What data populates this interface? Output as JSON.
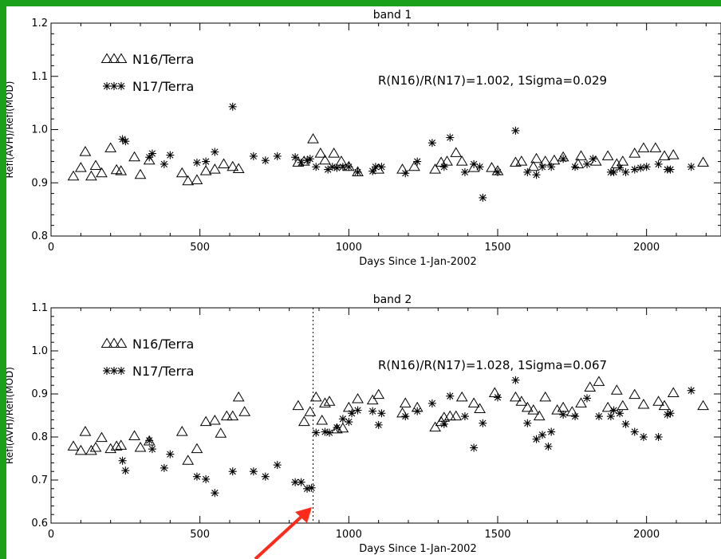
{
  "colors": {
    "background_frame": "#1aa01a",
    "plot_bg": "#ffffff",
    "ink": "#000000",
    "arrow": "#ff2a1a"
  },
  "chart_data": [
    {
      "type": "scatter",
      "title": "band 1",
      "xlabel": "Days Since 1-Jan-2002",
      "ylabel": "Refl(AVH)/Refl(MOD)",
      "xlim": [
        0,
        2250
      ],
      "ylim": [
        0.8,
        1.2
      ],
      "xticks": [
        0,
        500,
        1000,
        1500,
        2000
      ],
      "xtick_labels": [
        "0",
        "500",
        "1000",
        "1500",
        "2000"
      ],
      "yticks": [
        0.8,
        0.9,
        1.0,
        1.1,
        1.2
      ],
      "ytick_labels": [
        "0.8",
        "0.9",
        "1.0",
        "1.1",
        "1.2"
      ],
      "annotation": "R(N16)/R(N17)=1.002, 1Sigma=0.029",
      "series": [
        {
          "name": "N16/Terra",
          "marker": "triangle",
          "points": [
            [
              75,
              0.912
            ],
            [
              100,
              0.928
            ],
            [
              115,
              0.958
            ],
            [
              135,
              0.912
            ],
            [
              150,
              0.932
            ],
            [
              170,
              0.918
            ],
            [
              200,
              0.965
            ],
            [
              220,
              0.924
            ],
            [
              235,
              0.922
            ],
            [
              280,
              0.948
            ],
            [
              300,
              0.915
            ],
            [
              330,
              0.942
            ],
            [
              440,
              0.918
            ],
            [
              460,
              0.903
            ],
            [
              490,
              0.905
            ],
            [
              520,
              0.922
            ],
            [
              550,
              0.925
            ],
            [
              580,
              0.935
            ],
            [
              610,
              0.93
            ],
            [
              630,
              0.926
            ],
            [
              830,
              0.938
            ],
            [
              850,
              0.94
            ],
            [
              880,
              0.982
            ],
            [
              905,
              0.955
            ],
            [
              920,
              0.942
            ],
            [
              950,
              0.955
            ],
            [
              975,
              0.94
            ],
            [
              1000,
              0.93
            ],
            [
              1030,
              0.92
            ],
            [
              1100,
              0.925
            ],
            [
              1180,
              0.925
            ],
            [
              1220,
              0.93
            ],
            [
              1290,
              0.925
            ],
            [
              1310,
              0.938
            ],
            [
              1330,
              0.94
            ],
            [
              1360,
              0.956
            ],
            [
              1380,
              0.94
            ],
            [
              1420,
              0.928
            ],
            [
              1480,
              0.928
            ],
            [
              1500,
              0.922
            ],
            [
              1560,
              0.938
            ],
            [
              1580,
              0.94
            ],
            [
              1620,
              0.93
            ],
            [
              1630,
              0.945
            ],
            [
              1660,
              0.94
            ],
            [
              1690,
              0.942
            ],
            [
              1720,
              0.948
            ],
            [
              1770,
              0.935
            ],
            [
              1780,
              0.95
            ],
            [
              1830,
              0.94
            ],
            [
              1870,
              0.95
            ],
            [
              1900,
              0.935
            ],
            [
              1920,
              0.94
            ],
            [
              1960,
              0.955
            ],
            [
              1990,
              0.965
            ],
            [
              2030,
              0.965
            ],
            [
              2060,
              0.95
            ],
            [
              2090,
              0.952
            ],
            [
              2190,
              0.938
            ]
          ]
        },
        {
          "name": "N17/Terra",
          "marker": "asterisk",
          "points": [
            [
              240,
              0.982
            ],
            [
              250,
              0.978
            ],
            [
              330,
              0.948
            ],
            [
              340,
              0.955
            ],
            [
              380,
              0.935
            ],
            [
              400,
              0.952
            ],
            [
              490,
              0.938
            ],
            [
              520,
              0.94
            ],
            [
              550,
              0.958
            ],
            [
              610,
              1.043
            ],
            [
              680,
              0.95
            ],
            [
              720,
              0.942
            ],
            [
              760,
              0.95
            ],
            [
              820,
              0.948
            ],
            [
              840,
              0.938
            ],
            [
              860,
              0.942
            ],
            [
              870,
              0.945
            ],
            [
              890,
              0.93
            ],
            [
              930,
              0.925
            ],
            [
              945,
              0.93
            ],
            [
              960,
              0.928
            ],
            [
              980,
              0.93
            ],
            [
              1000,
              0.93
            ],
            [
              1030,
              0.92
            ],
            [
              1080,
              0.922
            ],
            [
              1090,
              0.93
            ],
            [
              1110,
              0.93
            ],
            [
              1190,
              0.918
            ],
            [
              1230,
              0.94
            ],
            [
              1280,
              0.975
            ],
            [
              1320,
              0.93
            ],
            [
              1340,
              0.985
            ],
            [
              1390,
              0.92
            ],
            [
              1420,
              0.935
            ],
            [
              1440,
              0.93
            ],
            [
              1450,
              0.872
            ],
            [
              1500,
              0.92
            ],
            [
              1560,
              0.998
            ],
            [
              1600,
              0.92
            ],
            [
              1630,
              0.915
            ],
            [
              1650,
              0.93
            ],
            [
              1680,
              0.93
            ],
            [
              1720,
              0.945
            ],
            [
              1760,
              0.93
            ],
            [
              1800,
              0.935
            ],
            [
              1820,
              0.945
            ],
            [
              1880,
              0.92
            ],
            [
              1890,
              0.92
            ],
            [
              1910,
              0.928
            ],
            [
              1930,
              0.92
            ],
            [
              1960,
              0.925
            ],
            [
              1980,
              0.928
            ],
            [
              2000,
              0.93
            ],
            [
              2040,
              0.935
            ],
            [
              2070,
              0.925
            ],
            [
              2080,
              0.925
            ],
            [
              2150,
              0.93
            ]
          ]
        }
      ]
    },
    {
      "type": "scatter",
      "title": "band 2",
      "xlabel": "Days Since 1-Jan-2002",
      "ylabel": "Refl(AVH)/Refl(MOD)",
      "xlim": [
        0,
        2250
      ],
      "ylim": [
        0.6,
        1.1
      ],
      "xticks": [
        0,
        500,
        1000,
        1500,
        2000
      ],
      "xtick_labels": [
        "0",
        "500",
        "1000",
        "1500",
        "2000"
      ],
      "yticks": [
        0.6,
        0.7,
        0.8,
        0.9,
        1.0,
        1.1
      ],
      "ytick_labels": [
        "0.6",
        "0.7",
        "0.8",
        "0.9",
        "1.0",
        "1.1"
      ],
      "annotation": "R(N16)/R(N17)=1.028, 1Sigma=0.067",
      "vline_x": 880,
      "series": [
        {
          "name": "N16/Terra",
          "marker": "triangle",
          "points": [
            [
              75,
              0.778
            ],
            [
              100,
              0.768
            ],
            [
              115,
              0.812
            ],
            [
              135,
              0.768
            ],
            [
              150,
              0.775
            ],
            [
              170,
              0.798
            ],
            [
              200,
              0.772
            ],
            [
              220,
              0.778
            ],
            [
              235,
              0.78
            ],
            [
              280,
              0.802
            ],
            [
              300,
              0.775
            ],
            [
              330,
              0.79
            ],
            [
              440,
              0.812
            ],
            [
              460,
              0.745
            ],
            [
              490,
              0.772
            ],
            [
              520,
              0.835
            ],
            [
              550,
              0.838
            ],
            [
              570,
              0.808
            ],
            [
              590,
              0.848
            ],
            [
              610,
              0.848
            ],
            [
              630,
              0.892
            ],
            [
              650,
              0.858
            ],
            [
              830,
              0.872
            ],
            [
              850,
              0.835
            ],
            [
              870,
              0.858
            ],
            [
              890,
              0.892
            ],
            [
              910,
              0.838
            ],
            [
              920,
              0.878
            ],
            [
              935,
              0.882
            ],
            [
              960,
              0.818
            ],
            [
              980,
              0.82
            ],
            [
              1000,
              0.868
            ],
            [
              1030,
              0.888
            ],
            [
              1080,
              0.885
            ],
            [
              1100,
              0.898
            ],
            [
              1180,
              0.855
            ],
            [
              1190,
              0.878
            ],
            [
              1230,
              0.868
            ],
            [
              1290,
              0.822
            ],
            [
              1310,
              0.835
            ],
            [
              1320,
              0.845
            ],
            [
              1340,
              0.848
            ],
            [
              1360,
              0.848
            ],
            [
              1380,
              0.892
            ],
            [
              1420,
              0.878
            ],
            [
              1440,
              0.865
            ],
            [
              1490,
              0.902
            ],
            [
              1560,
              0.892
            ],
            [
              1580,
              0.882
            ],
            [
              1600,
              0.868
            ],
            [
              1620,
              0.862
            ],
            [
              1640,
              0.848
            ],
            [
              1660,
              0.892
            ],
            [
              1700,
              0.862
            ],
            [
              1720,
              0.868
            ],
            [
              1750,
              0.858
            ],
            [
              1780,
              0.878
            ],
            [
              1810,
              0.915
            ],
            [
              1840,
              0.928
            ],
            [
              1870,
              0.868
            ],
            [
              1900,
              0.908
            ],
            [
              1920,
              0.872
            ],
            [
              1960,
              0.898
            ],
            [
              1990,
              0.875
            ],
            [
              2040,
              0.882
            ],
            [
              2060,
              0.872
            ],
            [
              2090,
              0.902
            ],
            [
              2190,
              0.872
            ]
          ]
        },
        {
          "name": "N17/Terra",
          "marker": "asterisk",
          "points": [
            [
              240,
              0.745
            ],
            [
              250,
              0.722
            ],
            [
              330,
              0.792
            ],
            [
              340,
              0.772
            ],
            [
              380,
              0.728
            ],
            [
              400,
              0.76
            ],
            [
              490,
              0.708
            ],
            [
              520,
              0.702
            ],
            [
              550,
              0.67
            ],
            [
              610,
              0.72
            ],
            [
              680,
              0.72
            ],
            [
              720,
              0.708
            ],
            [
              760,
              0.735
            ],
            [
              820,
              0.695
            ],
            [
              840,
              0.695
            ],
            [
              860,
              0.68
            ],
            [
              875,
              0.682
            ],
            [
              890,
              0.81
            ],
            [
              920,
              0.812
            ],
            [
              935,
              0.81
            ],
            [
              960,
              0.822
            ],
            [
              980,
              0.842
            ],
            [
              1000,
              0.835
            ],
            [
              1010,
              0.855
            ],
            [
              1030,
              0.862
            ],
            [
              1080,
              0.86
            ],
            [
              1100,
              0.828
            ],
            [
              1110,
              0.855
            ],
            [
              1190,
              0.848
            ],
            [
              1230,
              0.86
            ],
            [
              1280,
              0.878
            ],
            [
              1320,
              0.83
            ],
            [
              1340,
              0.895
            ],
            [
              1390,
              0.848
            ],
            [
              1420,
              0.775
            ],
            [
              1450,
              0.832
            ],
            [
              1500,
              0.892
            ],
            [
              1560,
              0.932
            ],
            [
              1600,
              0.832
            ],
            [
              1630,
              0.795
            ],
            [
              1650,
              0.805
            ],
            [
              1670,
              0.778
            ],
            [
              1680,
              0.812
            ],
            [
              1720,
              0.852
            ],
            [
              1760,
              0.848
            ],
            [
              1800,
              0.89
            ],
            [
              1840,
              0.848
            ],
            [
              1880,
              0.848
            ],
            [
              1890,
              0.862
            ],
            [
              1910,
              0.855
            ],
            [
              1930,
              0.83
            ],
            [
              1960,
              0.812
            ],
            [
              1990,
              0.8
            ],
            [
              2040,
              0.8
            ],
            [
              2070,
              0.852
            ],
            [
              2080,
              0.855
            ],
            [
              2150,
              0.908
            ]
          ]
        }
      ]
    }
  ]
}
